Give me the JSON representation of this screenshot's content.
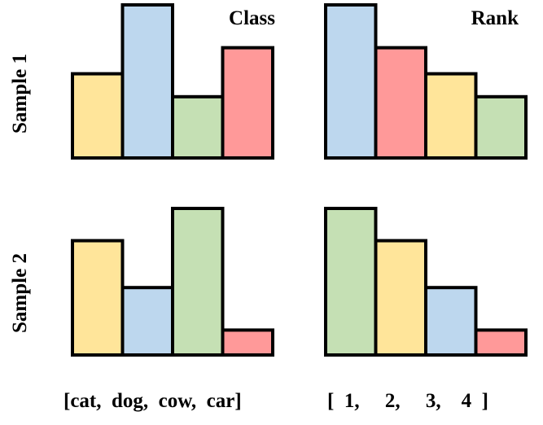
{
  "chart_data": {
    "type": "bar",
    "rows": [
      "Sample 1",
      "Sample 2"
    ],
    "columns": [
      "Class",
      "Rank"
    ],
    "colors": {
      "cat": "#FFE59A",
      "dog": "#BDD7EE",
      "cow": "#C5E0B4",
      "car": "#FF9999"
    },
    "ylim": [
      0,
      10
    ],
    "panels": [
      {
        "row": "Sample 1",
        "column": "Class",
        "bars": [
          {
            "key": "cat",
            "value": 5.5
          },
          {
            "key": "dog",
            "value": 10
          },
          {
            "key": "cow",
            "value": 4
          },
          {
            "key": "car",
            "value": 7.2
          }
        ]
      },
      {
        "row": "Sample 1",
        "column": "Rank",
        "bars": [
          {
            "key": "dog",
            "value": 10
          },
          {
            "key": "car",
            "value": 7.2
          },
          {
            "key": "cat",
            "value": 5.5
          },
          {
            "key": "cow",
            "value": 4
          }
        ]
      },
      {
        "row": "Sample 2",
        "column": "Class",
        "bars": [
          {
            "key": "cat",
            "value": 7.8
          },
          {
            "key": "dog",
            "value": 4.6
          },
          {
            "key": "cow",
            "value": 10
          },
          {
            "key": "car",
            "value": 1.7
          }
        ]
      },
      {
        "row": "Sample 2",
        "column": "Rank",
        "bars": [
          {
            "key": "cow",
            "value": 10
          },
          {
            "key": "cat",
            "value": 7.8
          },
          {
            "key": "dog",
            "value": 4.6
          },
          {
            "key": "car",
            "value": 1.7
          }
        ]
      }
    ],
    "footer": {
      "class_text": "[cat,  dog,  cow,  car]",
      "rank_text": "[  1,     2,     3,    4  ]"
    }
  }
}
